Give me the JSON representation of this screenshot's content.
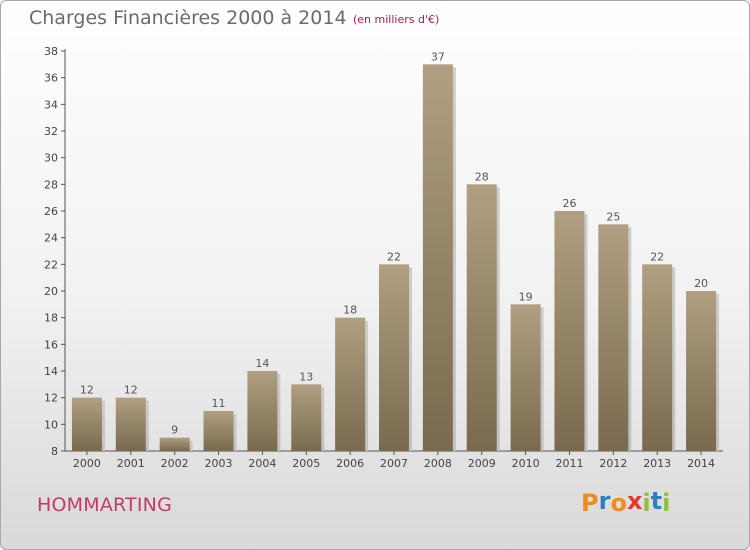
{
  "header": {
    "title": "Charges Financières 2000 à 2014",
    "subtitle": "(en milliers d'€)"
  },
  "footer": {
    "commune": "HOMMARTING",
    "brand": "Proxiti"
  },
  "colors": {
    "bar_top": "#b09f80",
    "bar_bottom": "#796a4f",
    "commune_text": "#c03c6c",
    "logo_letters": [
      "#f08c1e",
      "#2b7fc4",
      "#f08c1e",
      "#e23a2a",
      "#8fc23c",
      "#2b7fc4",
      "#8fc23c"
    ]
  },
  "chart_data": {
    "type": "bar",
    "title": "Charges Financières 2000 à 2014",
    "subtitle": "(en milliers d'€)",
    "categories": [
      "2000",
      "2001",
      "2002",
      "2003",
      "2004",
      "2005",
      "2006",
      "2007",
      "2008",
      "2009",
      "2010",
      "2011",
      "2012",
      "2013",
      "2014"
    ],
    "values": [
      12,
      12,
      9,
      11,
      14,
      13,
      18,
      22,
      37,
      28,
      19,
      26,
      25,
      22,
      20
    ],
    "ylim": [
      8,
      38
    ],
    "yticks": [
      8,
      10,
      12,
      14,
      16,
      18,
      20,
      22,
      24,
      26,
      28,
      30,
      32,
      34,
      36,
      38
    ],
    "grid": false,
    "legend": "none",
    "data_labels": true
  }
}
